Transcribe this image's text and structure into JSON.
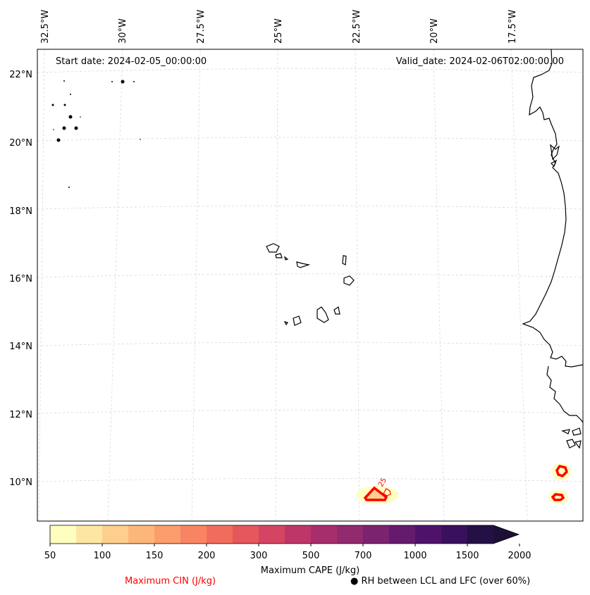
{
  "map": {
    "start_date": "Start date: 2024-02-05_00:00:00",
    "valid_date": "Valid_date: 2024-02-06T02:00:00.00",
    "lon_labels": [
      "32.5°W",
      "30°W",
      "27.5°W",
      "25°W",
      "22.5°W",
      "20°W",
      "17.5°W"
    ],
    "lat_labels": [
      "22°N",
      "20°N",
      "18°N",
      "16°N",
      "14°N",
      "12°N",
      "10°N"
    ]
  },
  "colorbar": {
    "title": "Maximum CAPE (J/kg)",
    "ticks": [
      "50",
      "100",
      "150",
      "200",
      "300",
      "500",
      "700",
      "1000",
      "1500",
      "2000"
    ],
    "colors": [
      "#fefec0",
      "#fde6a4",
      "#fdce8c",
      "#fdb67a",
      "#fc9d6c",
      "#f98463",
      "#f26c5c",
      "#e5575c",
      "#d44563",
      "#be3668",
      "#a72e6c",
      "#912a6e",
      "#7b236f",
      "#651a6d",
      "#4f126a",
      "#39105c",
      "#231045",
      "#1c1038"
    ]
  },
  "legend": {
    "cin_label": "Maximum CIN (J/kg)",
    "cin_color": "#ff0000",
    "rh_label": "RH between LCL and LFC (over 60%)",
    "rh_symbol": "●"
  },
  "annotations": {
    "cin_contour_label": "25"
  }
}
